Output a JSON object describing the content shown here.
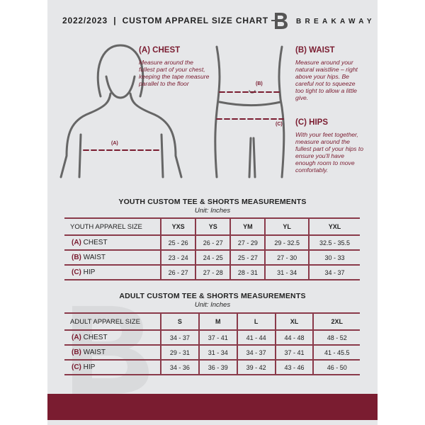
{
  "header": {
    "title": "2022/2023  |  CUSTOM APPAREL SIZE CHART",
    "brand": "BREAKAWAY",
    "logo_letter": "B"
  },
  "measures": {
    "chest": {
      "title": "(A) CHEST",
      "desc": "Measure around the fullest part of your chest, keeping the tape measure parallel to the floor",
      "marker": "(A)"
    },
    "waist": {
      "title": "(B) WAIST",
      "desc": "Measure around your natural waistline – right above your hips. Be careful not to squeeze too tight to allow a little give.",
      "marker": "(B)"
    },
    "hips": {
      "title": "(C) HIPS",
      "desc": "With your feet together, measure around the fullest part of your hips to ensure you'll have enough room to move comfortably.",
      "marker": "(C)"
    }
  },
  "colors": {
    "accent": "#7a1c30",
    "panel": "#e6e7e9"
  },
  "youth": {
    "title": "YOUTH CUSTOM TEE & SHORTS MEASUREMENTS",
    "unit": "Unit: Inches",
    "header": "YOUTH APPAREL SIZE",
    "sizes": [
      "YXS",
      "YS",
      "YM",
      "YL",
      "YXL"
    ],
    "rows": [
      {
        "code": "(A)",
        "label": "CHEST",
        "values": [
          "25 - 26",
          "26 - 27",
          "27 - 29",
          "29 - 32.5",
          "32.5 - 35.5"
        ]
      },
      {
        "code": "(B)",
        "label": "WAIST",
        "values": [
          "23 - 24",
          "24 - 25",
          "25 - 27",
          "27 - 30",
          "30 - 33"
        ]
      },
      {
        "code": "(C)",
        "label": "HIP",
        "values": [
          "26 - 27",
          "27 - 28",
          "28 - 31",
          "31 - 34",
          "34 - 37"
        ]
      }
    ]
  },
  "adult": {
    "title": "ADULT CUSTOM TEE & SHORTS MEASUREMENTS",
    "unit": "Unit: Inches",
    "header": "ADULT APPAREL SIZE",
    "sizes": [
      "S",
      "M",
      "L",
      "XL",
      "2XL"
    ],
    "rows": [
      {
        "code": "(A)",
        "label": "CHEST",
        "values": [
          "34 - 37",
          "37 - 41",
          "41 - 44",
          "44 - 48",
          "48 - 52"
        ]
      },
      {
        "code": "(B)",
        "label": "WAIST",
        "values": [
          "29 - 31",
          "31 - 34",
          "34 - 37",
          "37 - 41",
          "41 - 45.5"
        ]
      },
      {
        "code": "(C)",
        "label": "HIP",
        "values": [
          "34 - 36",
          "36 - 39",
          "39 - 42",
          "43 - 46",
          "46 - 50"
        ]
      }
    ]
  }
}
